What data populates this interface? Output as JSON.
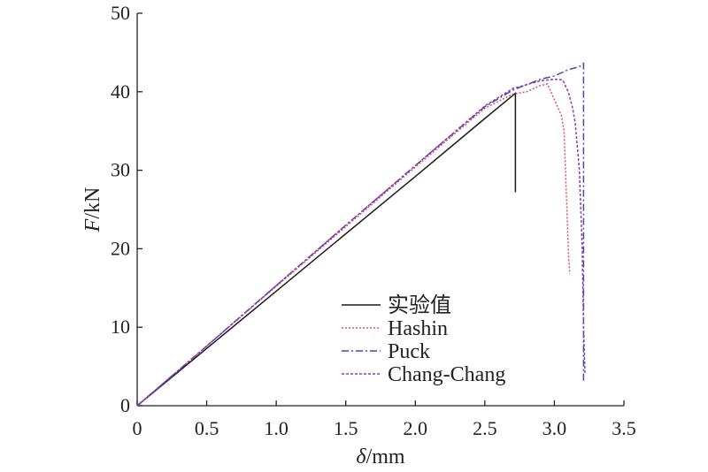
{
  "chart_data": {
    "type": "line",
    "title": "",
    "xlabel_italic": "δ",
    "xlabel_rest": "/mm",
    "ylabel_italic": "F",
    "ylabel_rest": "/kN",
    "xlim": [
      0,
      3.5
    ],
    "ylim": [
      0,
      50
    ],
    "xticks": [
      "0",
      "0.5",
      "1.0",
      "1.5",
      "2.0",
      "2.5",
      "3.0",
      "3.5"
    ],
    "yticks": [
      "0",
      "10",
      "20",
      "30",
      "40",
      "50"
    ],
    "grid": false,
    "legend_position": "center",
    "series": [
      {
        "name": "实验值",
        "color": "#1a1a1a",
        "dash": "",
        "points": [
          [
            0,
            0
          ],
          [
            0.5,
            7.3
          ],
          [
            1.0,
            14.6
          ],
          [
            1.5,
            21.9
          ],
          [
            2.0,
            29.2
          ],
          [
            2.5,
            36.6
          ],
          [
            2.72,
            39.8
          ],
          [
            2.72,
            27.2
          ]
        ]
      },
      {
        "name": "Hashin",
        "color": "#e0505a",
        "dash": "2,2",
        "points": [
          [
            0,
            0
          ],
          [
            0.5,
            7.6
          ],
          [
            1.0,
            15.2
          ],
          [
            1.5,
            22.8
          ],
          [
            2.0,
            30.4
          ],
          [
            2.5,
            37.9
          ],
          [
            2.7,
            39.7
          ],
          [
            2.8,
            40.0
          ],
          [
            2.9,
            40.8
          ],
          [
            2.95,
            41.0
          ],
          [
            3.0,
            39.0
          ],
          [
            3.05,
            37.0
          ],
          [
            3.07,
            35.0
          ],
          [
            3.09,
            25.0
          ],
          [
            3.1,
            20.0
          ],
          [
            3.11,
            16.8
          ]
        ]
      },
      {
        "name": "Puck",
        "color": "#3a4fb0",
        "dash": "8,3,2,3",
        "points": [
          [
            0,
            0
          ],
          [
            0.5,
            7.6
          ],
          [
            1.0,
            15.3
          ],
          [
            1.5,
            23.0
          ],
          [
            2.0,
            30.6
          ],
          [
            2.5,
            38.1
          ],
          [
            2.7,
            40.2
          ],
          [
            2.9,
            41.6
          ],
          [
            3.0,
            42.0
          ],
          [
            3.1,
            42.8
          ],
          [
            3.18,
            43.2
          ],
          [
            3.21,
            43.6
          ],
          [
            3.21,
            25.0
          ],
          [
            3.21,
            3.2
          ]
        ]
      },
      {
        "name": "Chang-Chang",
        "color": "#8e3bb0",
        "dash": "3,2",
        "points": [
          [
            0,
            0
          ],
          [
            0.5,
            7.6
          ],
          [
            1.0,
            15.3
          ],
          [
            1.5,
            23.0
          ],
          [
            2.0,
            30.6
          ],
          [
            2.5,
            38.2
          ],
          [
            2.7,
            40.4
          ],
          [
            2.9,
            41.4
          ],
          [
            3.0,
            41.6
          ],
          [
            3.06,
            41.5
          ],
          [
            3.1,
            40.0
          ],
          [
            3.13,
            38.0
          ],
          [
            3.15,
            36.0
          ],
          [
            3.18,
            30.0
          ],
          [
            3.2,
            20.0
          ],
          [
            3.21,
            10.0
          ],
          [
            3.22,
            4.0
          ]
        ]
      }
    ]
  }
}
